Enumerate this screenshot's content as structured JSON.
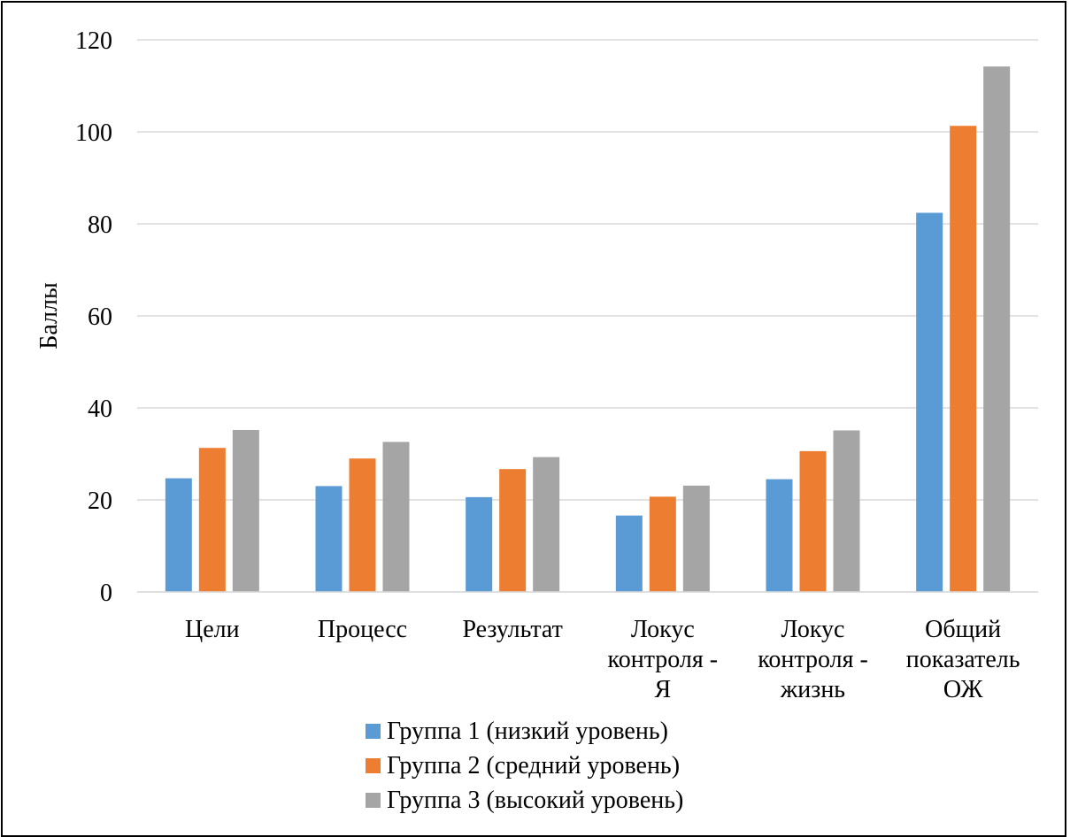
{
  "chart_data": {
    "type": "bar",
    "title": "",
    "xlabel": "",
    "ylabel": "Баллы",
    "ylim": [
      0,
      120
    ],
    "yticks": [
      "0",
      "20",
      "40",
      "60",
      "80",
      "100",
      "120"
    ],
    "grid": true,
    "legend_position": "bottom",
    "categories": [
      [
        "Цели"
      ],
      [
        "Процесс"
      ],
      [
        "Результат"
      ],
      [
        "Локус",
        "контроля -",
        "Я"
      ],
      [
        "Локус",
        "контроля -",
        "жизнь"
      ],
      [
        "Общий",
        "показатель",
        "ОЖ"
      ]
    ],
    "series": [
      {
        "name": "Группа 1 (низкий уровень)",
        "color": "#5b9bd5",
        "values": [
          24.7,
          23.0,
          20.6,
          16.6,
          24.5,
          82.4
        ]
      },
      {
        "name": "Группа 2 (средний уровень)",
        "color": "#ed7d31",
        "values": [
          31.3,
          29.0,
          26.7,
          20.7,
          30.6,
          101.3
        ]
      },
      {
        "name": "Группа 3  (высокий уровень)",
        "color": "#a5a5a5",
        "values": [
          35.2,
          32.6,
          29.3,
          23.1,
          35.1,
          114.2
        ]
      }
    ]
  }
}
